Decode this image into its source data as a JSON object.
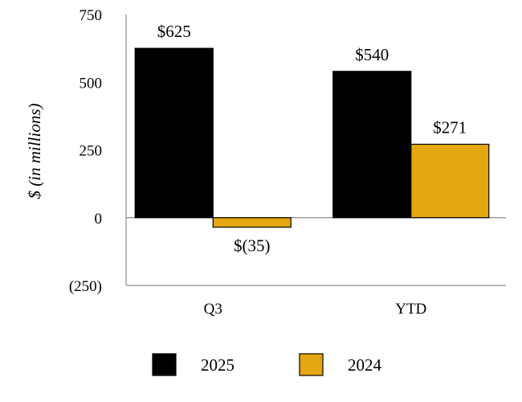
{
  "chart_data": {
    "type": "bar",
    "title": "",
    "xlabel": "",
    "ylabel": "$ (in millions)",
    "categories": [
      "Q3",
      "YTD"
    ],
    "ylim": [
      -250,
      750
    ],
    "yticks": [
      750,
      500,
      250,
      0,
      -250
    ],
    "ytick_labels": [
      "750",
      "500",
      "250",
      "0",
      "(250)"
    ],
    "series": [
      {
        "name": "2025",
        "color": "#000000",
        "values": [
          625,
          540
        ],
        "labels": [
          "$625",
          "$540"
        ]
      },
      {
        "name": "2024",
        "color": "#E5A711",
        "values": [
          -35,
          271
        ],
        "labels": [
          "$(35)",
          "$271"
        ]
      }
    ],
    "legend_position": "bottom",
    "grid": false
  }
}
